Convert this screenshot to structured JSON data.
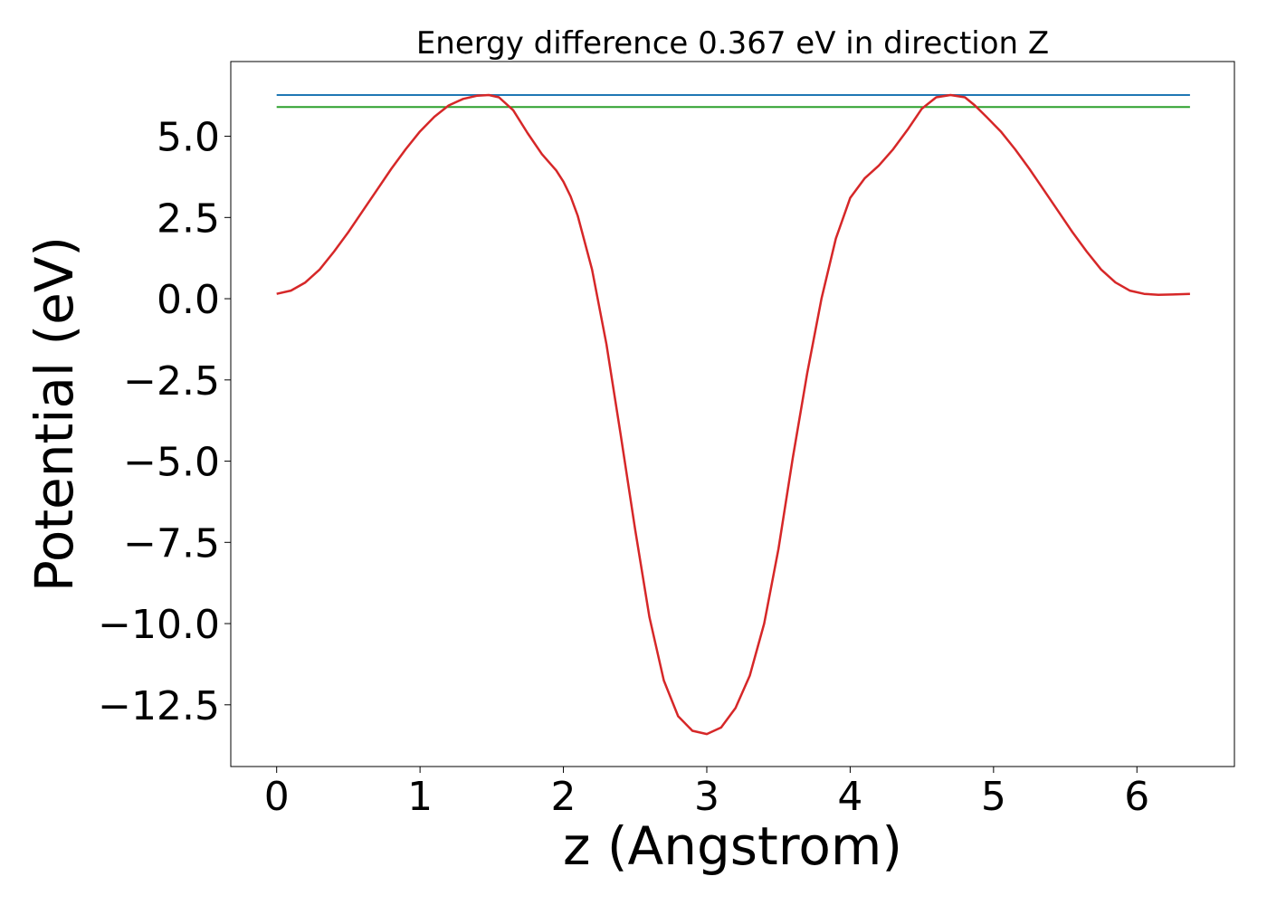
{
  "chart_data": {
    "type": "line",
    "title": "Energy difference 0.367 eV in direction Z",
    "xlabel": "z (Angstrom)",
    "ylabel": "Potential (eV)",
    "xlim": [
      -0.32,
      6.68
    ],
    "ylim": [
      -14.4,
      7.3
    ],
    "grid": false,
    "legend": "none",
    "x_ticks": [
      {
        "value": 0,
        "label": "0"
      },
      {
        "value": 1,
        "label": "1"
      },
      {
        "value": 2,
        "label": "2"
      },
      {
        "value": 3,
        "label": "3"
      },
      {
        "value": 4,
        "label": "4"
      },
      {
        "value": 5,
        "label": "5"
      },
      {
        "value": 6,
        "label": "6"
      }
    ],
    "y_ticks": [
      {
        "value": 5.0,
        "label": "5.0"
      },
      {
        "value": 2.5,
        "label": "2.5"
      },
      {
        "value": 0.0,
        "label": "0.0"
      },
      {
        "value": -2.5,
        "label": "−2.5"
      },
      {
        "value": -5.0,
        "label": "−5.0"
      },
      {
        "value": -7.5,
        "label": "−7.5"
      },
      {
        "value": -10.0,
        "label": "−10.0"
      },
      {
        "value": -12.5,
        "label": "−12.5"
      }
    ],
    "series": [
      {
        "color": "#1f77b4",
        "kind": "hline",
        "x": [
          0,
          6.37
        ],
        "y": [
          6.27,
          6.27
        ]
      },
      {
        "color": "#2ca02c",
        "kind": "hline",
        "x": [
          0,
          6.37
        ],
        "y": [
          5.9,
          5.9
        ]
      },
      {
        "color": "#d62728",
        "kind": "curve",
        "x": [
          0,
          0.1,
          0.2,
          0.3,
          0.4,
          0.5,
          0.6,
          0.7,
          0.8,
          0.9,
          1.0,
          1.1,
          1.2,
          1.3,
          1.4,
          1.48,
          1.55,
          1.65,
          1.75,
          1.85,
          1.95,
          2.0,
          2.05,
          2.1,
          2.2,
          2.3,
          2.4,
          2.5,
          2.6,
          2.7,
          2.8,
          2.9,
          3.0,
          3.1,
          3.2,
          3.3,
          3.4,
          3.5,
          3.6,
          3.7,
          3.8,
          3.9,
          4.0,
          4.1,
          4.2,
          4.3,
          4.4,
          4.5,
          4.6,
          4.7,
          4.8,
          4.87,
          4.95,
          5.05,
          5.15,
          5.25,
          5.35,
          5.45,
          5.55,
          5.65,
          5.75,
          5.85,
          5.95,
          6.05,
          6.15,
          6.25,
          6.37
        ],
        "y": [
          0.15,
          0.25,
          0.5,
          0.9,
          1.45,
          2.05,
          2.7,
          3.35,
          4.0,
          4.6,
          5.15,
          5.6,
          5.95,
          6.15,
          6.25,
          6.27,
          6.2,
          5.8,
          5.1,
          4.45,
          3.95,
          3.6,
          3.15,
          2.55,
          0.9,
          -1.4,
          -4.2,
          -7.1,
          -9.8,
          -11.75,
          -12.85,
          -13.3,
          -13.4,
          -13.2,
          -12.6,
          -11.6,
          -10.0,
          -7.7,
          -4.9,
          -2.3,
          0.0,
          1.85,
          3.1,
          3.7,
          4.1,
          4.6,
          5.2,
          5.85,
          6.2,
          6.27,
          6.2,
          5.95,
          5.6,
          5.15,
          4.6,
          4.0,
          3.35,
          2.7,
          2.05,
          1.45,
          0.9,
          0.5,
          0.25,
          0.15,
          0.12,
          0.13,
          0.15
        ]
      }
    ]
  }
}
